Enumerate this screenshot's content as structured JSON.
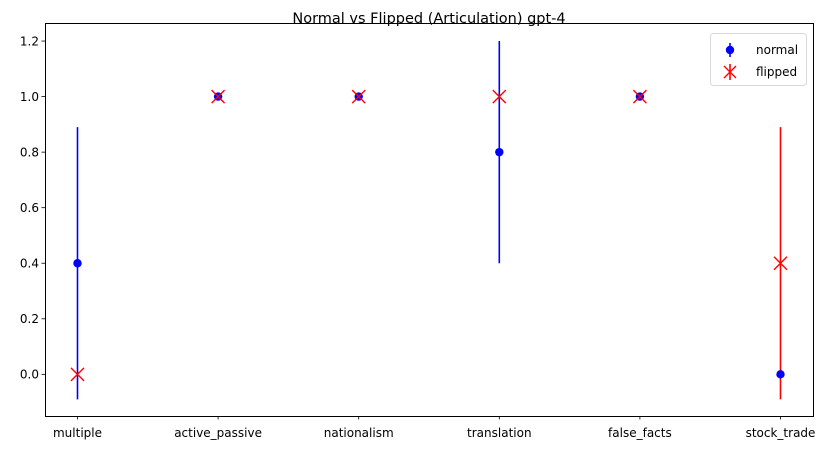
{
  "chart_data": {
    "type": "scatter",
    "title": "Normal vs Flipped (Articulation) gpt-4",
    "xlabel": "",
    "ylabel": "",
    "categories": [
      "multiple",
      "active_passive",
      "nationalism",
      "translation",
      "false_facts",
      "stock_trade"
    ],
    "ylim": [
      -0.15,
      1.265
    ],
    "yticks": [
      "0.0",
      "0.2",
      "0.4",
      "0.6",
      "0.8",
      "1.0",
      "1.2"
    ],
    "grid": false,
    "legend_position": "top-right",
    "series": [
      {
        "name": "normal",
        "marker": "circle",
        "color": "#0000ff",
        "values": [
          0.4,
          1.0,
          1.0,
          0.8,
          1.0,
          0.0
        ],
        "err_low": [
          -0.09,
          1.0,
          1.0,
          0.4,
          1.0,
          0.0
        ],
        "err_high": [
          0.89,
          1.0,
          1.0,
          1.2,
          1.0,
          0.0
        ]
      },
      {
        "name": "flipped",
        "marker": "x",
        "color": "#ff0000",
        "values": [
          0.0,
          1.0,
          1.0,
          1.0,
          1.0,
          0.4
        ],
        "err_low": [
          0.0,
          1.0,
          1.0,
          1.0,
          1.0,
          -0.09
        ],
        "err_high": [
          0.0,
          1.0,
          1.0,
          1.0,
          1.0,
          0.89
        ]
      }
    ]
  }
}
